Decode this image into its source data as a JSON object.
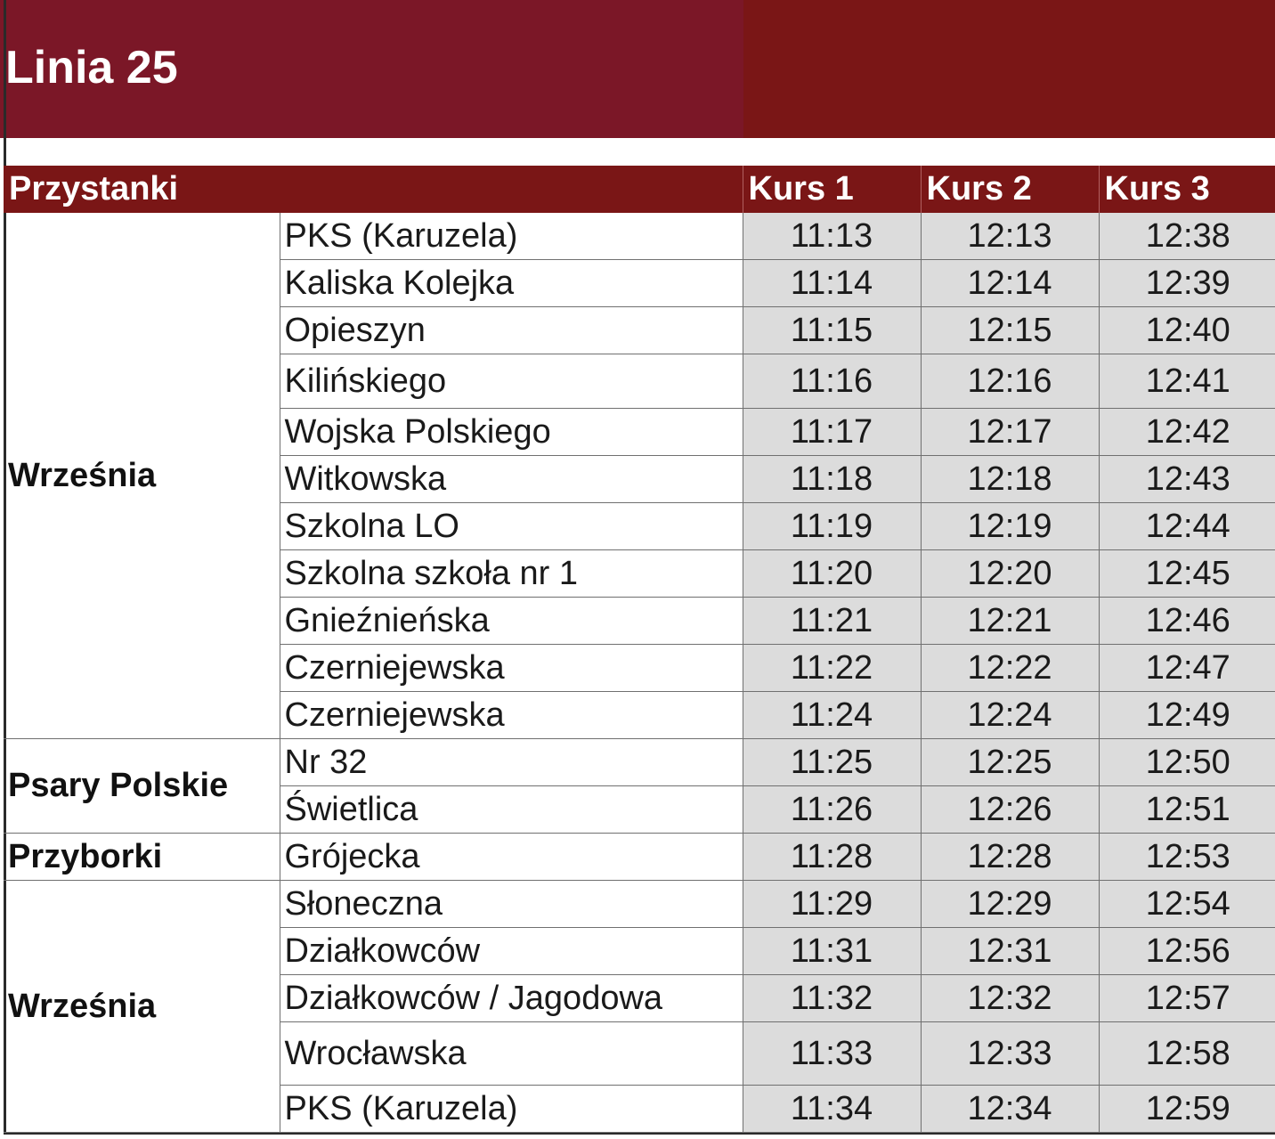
{
  "title": "Linia 25",
  "header": {
    "stops_label": "Przystanki",
    "courses": [
      "Kurs 1",
      "Kurs 2",
      "Kurs 3"
    ]
  },
  "groups": [
    {
      "town": "Września",
      "rows": [
        {
          "stop": "PKS (Karuzela)",
          "times": [
            "11:13",
            "12:13",
            "12:38"
          ]
        },
        {
          "stop": "Kaliska Kolejka",
          "times": [
            "11:14",
            "12:14",
            "12:39"
          ]
        },
        {
          "stop": "Opieszyn",
          "times": [
            "11:15",
            "12:15",
            "12:40"
          ]
        },
        {
          "stop": "Kilińskiego",
          "times": [
            "11:16",
            "12:16",
            "12:41"
          ]
        },
        {
          "stop": "Wojska Polskiego",
          "times": [
            "11:17",
            "12:17",
            "12:42"
          ]
        },
        {
          "stop": "Witkowska",
          "times": [
            "11:18",
            "12:18",
            "12:43"
          ]
        },
        {
          "stop": "Szkolna LO",
          "times": [
            "11:19",
            "12:19",
            "12:44"
          ]
        },
        {
          "stop": "Szkolna szkoła nr 1",
          "times": [
            "11:20",
            "12:20",
            "12:45"
          ]
        },
        {
          "stop": "Gnieźnieńska",
          "times": [
            "11:21",
            "12:21",
            "12:46"
          ]
        },
        {
          "stop": "Czerniejewska",
          "times": [
            "11:22",
            "12:22",
            "12:47"
          ]
        },
        {
          "stop": "Czerniejewska",
          "times": [
            "11:24",
            "12:24",
            "12:49"
          ]
        }
      ]
    },
    {
      "town": "Psary Polskie",
      "rows": [
        {
          "stop": "Nr 32",
          "times": [
            "11:25",
            "12:25",
            "12:50"
          ]
        },
        {
          "stop": "Świetlica",
          "times": [
            "11:26",
            "12:26",
            "12:51"
          ]
        }
      ]
    },
    {
      "town": "Przyborki",
      "rows": [
        {
          "stop": "Grójecka",
          "times": [
            "11:28",
            "12:28",
            "12:53"
          ]
        }
      ]
    },
    {
      "town": "Września",
      "rows": [
        {
          "stop": "Słoneczna",
          "times": [
            "11:29",
            "12:29",
            "12:54"
          ]
        },
        {
          "stop": "Działkowców",
          "times": [
            "11:31",
            "12:31",
            "12:56"
          ]
        },
        {
          "stop": "Działkowców / Jagodowa",
          "times": [
            "11:32",
            "12:32",
            "12:57"
          ]
        },
        {
          "stop": "Wrocławska",
          "times": [
            "11:33",
            "12:33",
            "12:58"
          ]
        },
        {
          "stop": "PKS (Karuzela)",
          "times": [
            "11:34",
            "12:34",
            "12:59"
          ]
        }
      ]
    }
  ]
}
